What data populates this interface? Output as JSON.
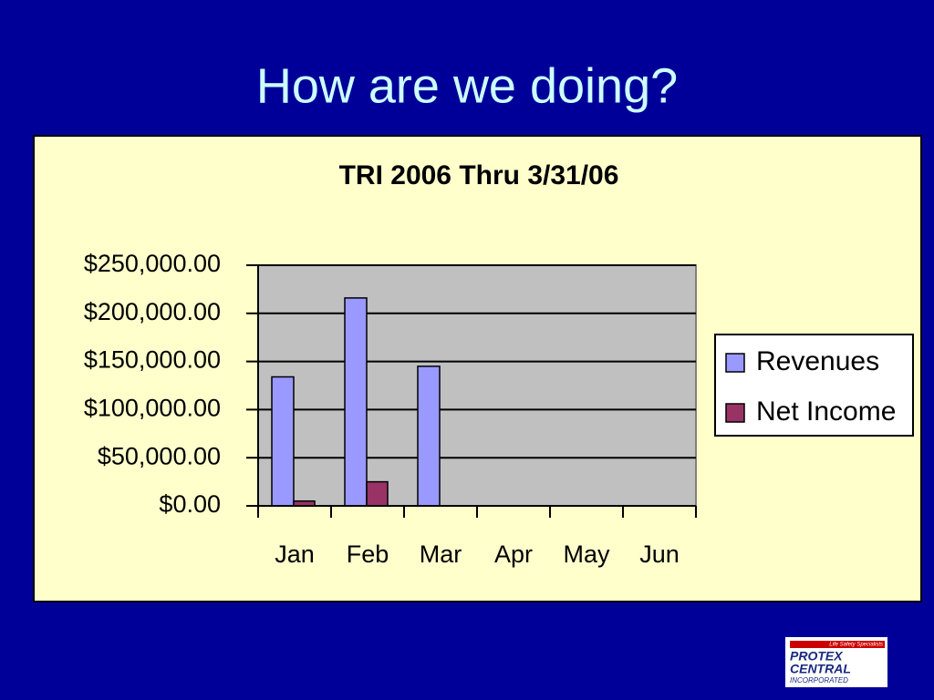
{
  "slide": {
    "title": "How are we doing?"
  },
  "chart_data": {
    "type": "bar",
    "title": "TRI 2006 Thru 3/31/06",
    "categories": [
      "Jan",
      "Feb",
      "Mar",
      "Apr",
      "May",
      "Jun"
    ],
    "series": [
      {
        "name": "Revenues",
        "color": "#9999ff",
        "values": [
          134000,
          216000,
          145000,
          null,
          null,
          null
        ]
      },
      {
        "name": "Net Income",
        "color": "#993366",
        "values": [
          5000,
          25000,
          null,
          null,
          null,
          null
        ]
      }
    ],
    "ylim": [
      0,
      250000
    ],
    "yticks": [
      {
        "value": 0,
        "label": "$0.00"
      },
      {
        "value": 50000,
        "label": "$50,000.00"
      },
      {
        "value": 100000,
        "label": "$100,000.00"
      },
      {
        "value": 150000,
        "label": "$150,000.00"
      },
      {
        "value": 200000,
        "label": "$200,000.00"
      },
      {
        "value": 250000,
        "label": "$250,000.00"
      }
    ],
    "grid": true,
    "legend": "right"
  },
  "logo": {
    "tagline": "Life Safety Specialists",
    "line1": "PROTEX",
    "line2": "CENTRAL",
    "line3": "INCORPORATED"
  }
}
